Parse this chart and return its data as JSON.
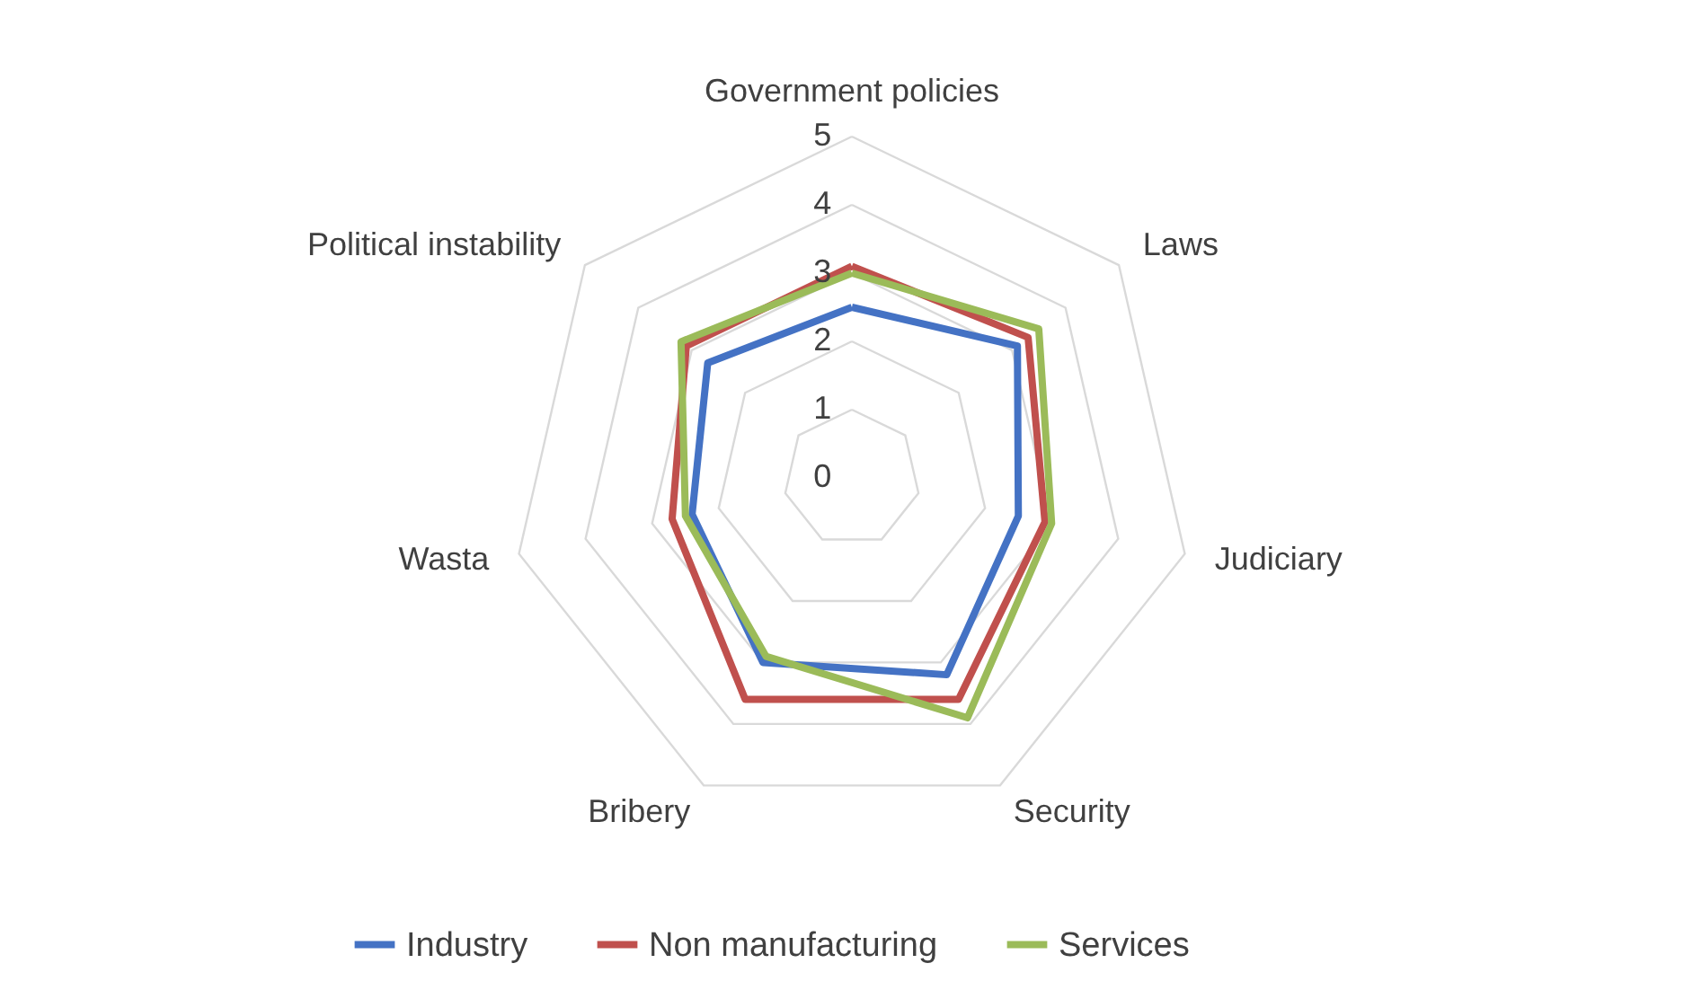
{
  "chart_data": {
    "type": "radar",
    "categories": [
      "Government policies",
      "Laws",
      "Judiciary",
      "Security",
      "Bribery",
      "Wasta",
      "Political instability"
    ],
    "series": [
      {
        "name": "Industry",
        "color": "#4472c4",
        "values": [
          2.5,
          3.1,
          2.5,
          3.2,
          3.0,
          2.4,
          2.7
        ]
      },
      {
        "name": "Non manufacturing",
        "color": "#c0504d",
        "values": [
          3.1,
          3.3,
          2.9,
          3.6,
          3.6,
          2.7,
          3.1
        ]
      },
      {
        "name": "Services",
        "color": "#9bbb59",
        "values": [
          3.0,
          3.5,
          3.0,
          3.9,
          2.9,
          2.5,
          3.2
        ]
      }
    ],
    "ylim": [
      0,
      5
    ],
    "yticks": [
      0,
      1,
      2,
      3,
      4,
      5
    ],
    "grid": true,
    "legend": "bottom"
  }
}
